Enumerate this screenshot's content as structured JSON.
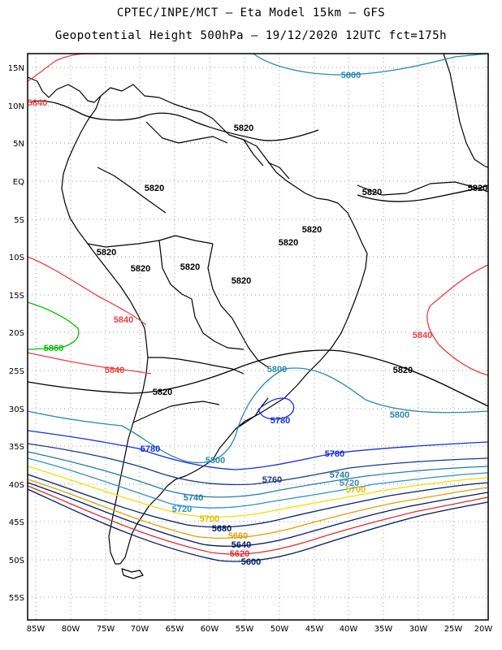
{
  "header": {
    "line1": "CPTEC/INPE/MCT —  Eta Model 15km — GFS",
    "line2": "Geopotential Height 500hPa — 19/12/2020 12UTC fct=175h"
  },
  "map": {
    "lat_labels": [
      "15N",
      "10N",
      "5N",
      "EQ",
      "5S",
      "10S",
      "15S",
      "20S",
      "25S",
      "30S",
      "35S",
      "40S",
      "45S",
      "50S",
      "55S"
    ],
    "lon_labels": [
      "85W",
      "80W",
      "75W",
      "70W",
      "65W",
      "60W",
      "55W",
      "50W",
      "45W",
      "40W",
      "35W",
      "30W",
      "25W",
      "20W"
    ],
    "colors": {
      "frame": "#000000",
      "grid": "#9a9a9a",
      "coast": "#000000",
      "c5560": "#00c000",
      "c5580": "#40c8ff",
      "c5600": "#001a66",
      "c5620": "#e03030",
      "c5640": "#001a66",
      "c5660": "#e0a000",
      "c5680": "#00206a",
      "c5700": "#f0e000",
      "c5720": "#3090d0",
      "c5740": "#2080a0",
      "c5760": "#1a3a8a",
      "c5780": "#1530e0",
      "c5800": "#2a88b0",
      "c5820": "#000000",
      "c5840": "#ee4040",
      "c5860": "#00c000"
    },
    "contour_labels": [
      {
        "text": "5800",
        "color": "#2a88b0"
      },
      {
        "text": "5840",
        "color": "#ee4040"
      },
      {
        "text": "5820",
        "color": "#000000"
      },
      {
        "text": "5820",
        "color": "#000000"
      },
      {
        "text": "5820",
        "color": "#000000"
      },
      {
        "text": "5820",
        "color": "#000000"
      },
      {
        "text": "5820",
        "color": "#000000"
      },
      {
        "text": "5820",
        "color": "#000000"
      },
      {
        "text": "5820",
        "color": "#000000"
      },
      {
        "text": "5820",
        "color": "#000000"
      },
      {
        "text": "5820",
        "color": "#000000"
      },
      {
        "text": "5820",
        "color": "#000000"
      },
      {
        "text": "5840",
        "color": "#ee4040"
      },
      {
        "text": "5860",
        "color": "#00c000"
      },
      {
        "text": "5840",
        "color": "#ee4040"
      },
      {
        "text": "5820",
        "color": "#000000"
      },
      {
        "text": "5840",
        "color": "#ee4040"
      },
      {
        "text": "5800",
        "color": "#2a88b0"
      },
      {
        "text": "5820",
        "color": "#000000"
      },
      {
        "text": "5800",
        "color": "#2a88b0"
      },
      {
        "text": "5780",
        "color": "#1530e0"
      },
      {
        "text": "5780",
        "color": "#1530e0"
      },
      {
        "text": "5800",
        "color": "#2a88b0"
      },
      {
        "text": "5780",
        "color": "#1530e0"
      },
      {
        "text": "5760",
        "color": "#1a3a8a"
      },
      {
        "text": "5740",
        "color": "#2080a0"
      },
      {
        "text": "5720",
        "color": "#3090d0"
      },
      {
        "text": "5700",
        "color": "#e0c000"
      },
      {
        "text": "5740",
        "color": "#2080a0"
      },
      {
        "text": "5720",
        "color": "#3090d0"
      },
      {
        "text": "5700",
        "color": "#e0c000"
      },
      {
        "text": "5680",
        "color": "#00206a"
      },
      {
        "text": "5660",
        "color": "#e0a000"
      },
      {
        "text": "5640",
        "color": "#001a66"
      },
      {
        "text": "5620",
        "color": "#e03030"
      },
      {
        "text": "5600",
        "color": "#001a66"
      }
    ]
  }
}
